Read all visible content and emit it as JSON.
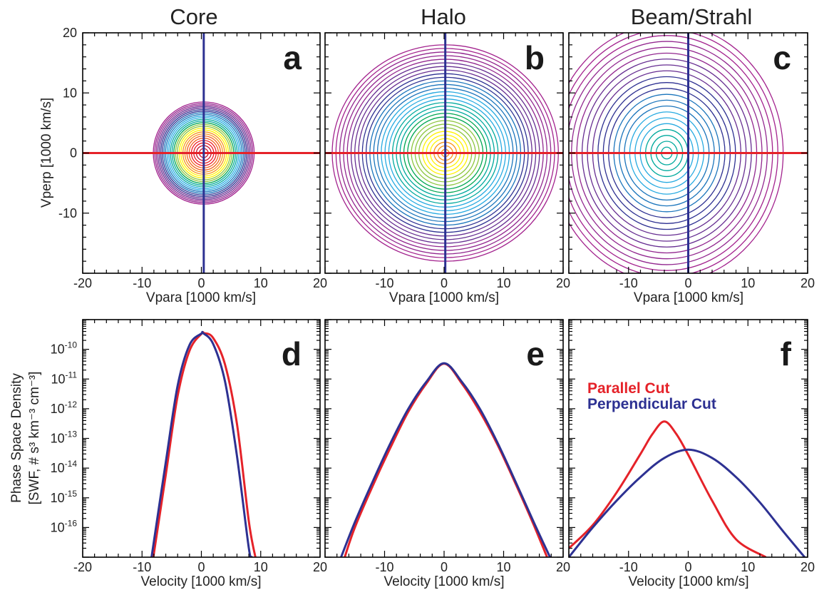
{
  "colors": {
    "parallel": "#e52229",
    "perpendicular": "#2d3192",
    "contour_palette": [
      "#c4122f",
      "#ed1c24",
      "#f26522",
      "#f7941d",
      "#fff200",
      "#8dc63f",
      "#00a651",
      "#00a99d",
      "#27aae1",
      "#1b75bc",
      "#2e3192",
      "#662d91",
      "#92278f",
      "#a3238e"
    ]
  },
  "column_titles": [
    "Core",
    "Halo",
    "Beam/Strahl"
  ],
  "axes": {
    "top_xlabel": "Vpara [1000 km/s]",
    "top_ylabel": "Vperp [1000 km/s]",
    "bottom_xlabel": "Velocity [1000 km/s]",
    "bottom_ylabel_line1": "Phase Space Density",
    "bottom_ylabel_line2": "[SWF, # s³ km⁻³ cm⁻³]"
  },
  "legend": {
    "parallel": "Parallel Cut",
    "perpendicular": "Perpendicular Cut"
  },
  "chart_data": [
    {
      "panel": "a",
      "type": "contour",
      "title": "Core",
      "xlabel": "Vpara [1000 km/s]",
      "ylabel": "Vperp [1000 km/s]",
      "xlim": [
        -20,
        20
      ],
      "ylim": [
        -20,
        20
      ],
      "xticks": [
        -20,
        -10,
        0,
        10,
        20
      ],
      "yticks": [
        -10,
        0,
        10,
        20
      ],
      "center": [
        0.4,
        0
      ],
      "outer_extent": [
        8.5,
        8.5
      ],
      "levels": 26,
      "color_start": 0,
      "cut_lines": {
        "parallel_y": 0,
        "perpendicular_x": 0.4
      }
    },
    {
      "panel": "b",
      "type": "contour",
      "title": "Halo",
      "xlabel": "Vpara [1000 km/s]",
      "xlim": [
        -20,
        20
      ],
      "ylim": [
        -20,
        20
      ],
      "xticks": [
        -10,
        0,
        10,
        20
      ],
      "center": [
        0.2,
        0
      ],
      "outer_extent": [
        19,
        18
      ],
      "levels": 30,
      "color_start": 3,
      "cut_lines": {
        "parallel_y": 0,
        "perpendicular_x": 0.2
      }
    },
    {
      "panel": "c",
      "type": "contour",
      "title": "Beam/Strahl",
      "xlabel": "Vpara [1000 km/s]",
      "xlim": [
        -20,
        20
      ],
      "ylim": [
        -20,
        20
      ],
      "xticks": [
        -10,
        0,
        10,
        20
      ],
      "center": [
        -3.6,
        0
      ],
      "outer_extent": [
        19.5,
        21.5
      ],
      "levels": 22,
      "color_start": 7,
      "cut_lines": {
        "parallel_y": 0,
        "perpendicular_x": 0
      }
    },
    {
      "panel": "d",
      "type": "line",
      "xlabel": "Velocity [1000 km/s]",
      "ylabel": "Phase Space Density [SWF, # s³ km⁻³ cm⁻³]",
      "xlim": [
        -20,
        20
      ],
      "ylim": [
        1e-17,
        1e-09
      ],
      "yscale": "log",
      "xticks": [
        -20,
        -10,
        0,
        10,
        20
      ],
      "yticks": [
        1e-16,
        1e-15,
        1e-14,
        1e-13,
        1e-12,
        1e-11,
        1e-10
      ],
      "ytick_labels": [
        "10-16",
        "10-15",
        "10-14",
        "10-13",
        "10-12",
        "10-11",
        "10-10"
      ],
      "series": [
        {
          "name": "Parallel Cut",
          "x": [
            -8.1,
            -6,
            -4,
            -2,
            0,
            0.5,
            2,
            4,
            6,
            8,
            9.1
          ],
          "y": [
            1e-17,
            6e-15,
            2.7e-12,
            9e-11,
            3.3e-10,
            3.5e-10,
            2.4e-10,
            3e-11,
            3e-13,
            1.6e-16,
            1e-17
          ]
        },
        {
          "name": "Perpendicular Cut",
          "x": [
            -8.4,
            -6,
            -4,
            -2,
            0,
            0.3,
            2,
            4,
            6,
            8,
            8.5
          ],
          "y": [
            1e-17,
            1.6e-14,
            6e-12,
            1.4e-10,
            3.4e-10,
            3.5e-10,
            1.5e-10,
            8e-12,
            2.5e-14,
            2e-17,
            1e-17
          ]
        }
      ]
    },
    {
      "panel": "e",
      "type": "line",
      "xlabel": "Velocity [1000 km/s]",
      "xlim": [
        -20,
        20
      ],
      "ylim": [
        1e-17,
        1e-09
      ],
      "yscale": "log",
      "xticks": [
        -10,
        0,
        10,
        20
      ],
      "series": [
        {
          "name": "Parallel Cut",
          "x": [
            -16.7,
            -15,
            -12,
            -9,
            -6,
            -3,
            0,
            3,
            6,
            9,
            12,
            15,
            17.3
          ],
          "y": [
            1e-17,
            1e-16,
            2.5e-15,
            5e-14,
            8e-13,
            7e-12,
            3.3e-11,
            7e-12,
            8e-13,
            6e-14,
            3e-15,
            1.3e-16,
            1e-17
          ]
        },
        {
          "name": "Perpendicular Cut",
          "x": [
            -17.3,
            -15,
            -12,
            -9,
            -6,
            -3,
            0,
            3,
            6,
            9,
            12,
            15,
            17.8
          ],
          "y": [
            1e-17,
            1.5e-16,
            3.5e-15,
            7e-14,
            1e-12,
            8e-12,
            3.4e-11,
            8e-12,
            1e-12,
            7e-14,
            3.5e-15,
            1.6e-16,
            1e-17
          ]
        }
      ]
    },
    {
      "panel": "f",
      "type": "line",
      "xlabel": "Velocity [1000 km/s]",
      "xlim": [
        -20,
        20
      ],
      "ylim": [
        1e-17,
        1e-09
      ],
      "yscale": "log",
      "xticks": [
        -10,
        0,
        10,
        20
      ],
      "legend_position": "upper-left",
      "series": [
        {
          "name": "Parallel Cut",
          "x": [
            -20,
            -16,
            -12,
            -8,
            -6,
            -4,
            -2,
            0,
            4,
            8,
            13
          ],
          "y": [
            2e-17,
            1.2e-16,
            1.5e-15,
            3e-14,
            1.4e-13,
            3.7e-13,
            1.4e-13,
            2.8e-14,
            8e-16,
            4e-17,
            1e-17
          ]
        },
        {
          "name": "Perpendicular Cut",
          "x": [
            -20,
            -16,
            -12,
            -8,
            -4,
            0,
            4,
            8,
            12,
            16,
            19.5
          ],
          "y": [
            1e-17,
            1e-16,
            8e-16,
            5e-15,
            2.2e-14,
            4.2e-14,
            2.2e-14,
            5e-15,
            7e-16,
            7e-17,
            1e-17
          ]
        }
      ]
    }
  ]
}
